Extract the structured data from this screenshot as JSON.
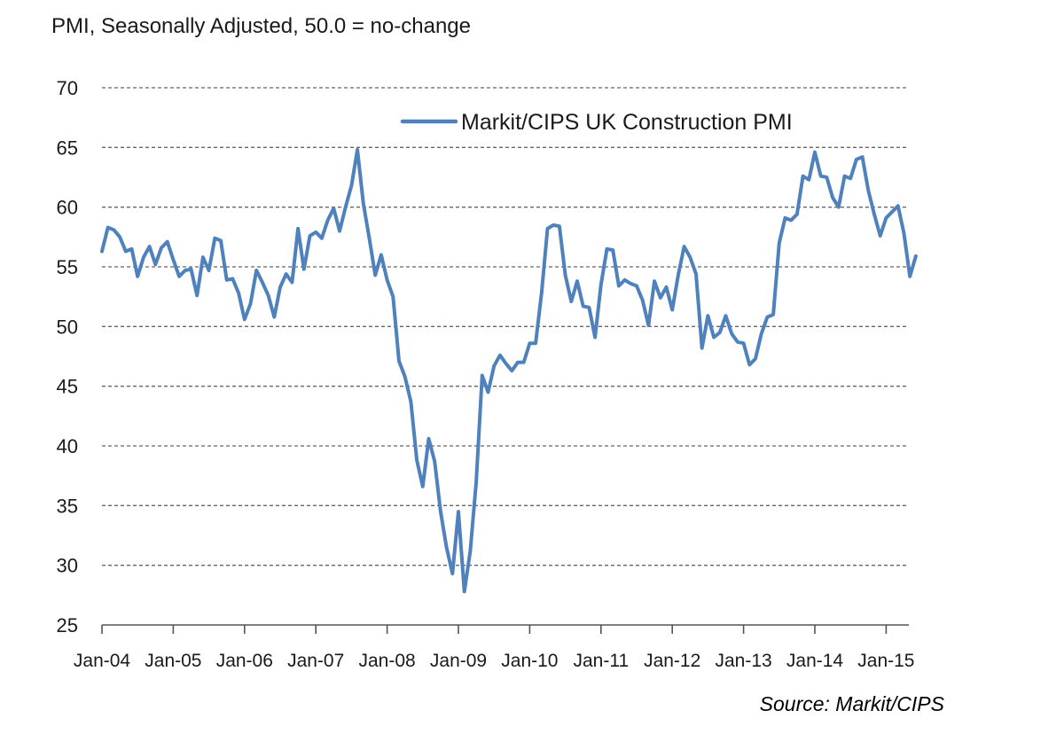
{
  "chart_data": {
    "type": "line",
    "subtitle": "PMI, Seasonally Adjusted, 50.0 = no-change",
    "source": "Source: Markit/CIPS",
    "ylim": [
      25,
      70
    ],
    "yticks": [
      "25",
      "30",
      "35",
      "40",
      "45",
      "50",
      "55",
      "60",
      "65",
      "70"
    ],
    "xticks": [
      "Jan-04",
      "Jan-05",
      "Jan-06",
      "Jan-07",
      "Jan-08",
      "Jan-09",
      "Jan-10",
      "Jan-11",
      "Jan-12",
      "Jan-13",
      "Jan-14",
      "Jan-15"
    ],
    "x_start": "Jan-04",
    "x_end": "Apr-15",
    "grid": true,
    "legend_position": "top-right",
    "line_color": "#4f81bd",
    "series": [
      {
        "name": "Markit/CIPS UK Construction PMI",
        "values": [
          56.3,
          58.3,
          58.1,
          57.5,
          56.3,
          56.5,
          54.2,
          55.8,
          56.7,
          55.2,
          56.6,
          57.1,
          55.6,
          54.2,
          54.7,
          54.8,
          52.6,
          55.8,
          54.7,
          57.4,
          57.2,
          53.9,
          54.0,
          52.8,
          50.6,
          51.9,
          54.7,
          53.7,
          52.6,
          50.8,
          53.3,
          54.4,
          53.7,
          58.2,
          54.8,
          57.6,
          57.9,
          57.4,
          58.9,
          59.9,
          58.0,
          60.0,
          61.8,
          64.8,
          60.3,
          57.4,
          54.3,
          56.0,
          53.9,
          52.5,
          47.1,
          45.8,
          43.7,
          38.8,
          36.6,
          40.6,
          38.7,
          34.5,
          31.5,
          29.3,
          34.5,
          27.8,
          31.2,
          37.0,
          45.9,
          44.5,
          46.7,
          47.6,
          46.9,
          46.3,
          47.0,
          47.0,
          48.6,
          48.6,
          52.8,
          58.2,
          58.5,
          58.4,
          54.3,
          52.1,
          53.8,
          51.7,
          51.6,
          49.1,
          53.5,
          56.5,
          56.4,
          53.4,
          53.9,
          53.6,
          53.4,
          52.2,
          50.1,
          53.8,
          52.4,
          53.3,
          51.4,
          54.3,
          56.7,
          55.8,
          54.4,
          48.2,
          50.9,
          49.1,
          49.5,
          50.9,
          49.4,
          48.7,
          48.6,
          46.8,
          47.3,
          49.4,
          50.8,
          51.0,
          57.0,
          59.1,
          58.9,
          59.4,
          62.6,
          62.3,
          64.6,
          62.6,
          62.5,
          60.8,
          60.0,
          62.6,
          62.4,
          64.0,
          64.2,
          61.4,
          59.4,
          57.6,
          59.1,
          59.6,
          60.1,
          57.8,
          54.2,
          55.9
        ]
      }
    ]
  }
}
